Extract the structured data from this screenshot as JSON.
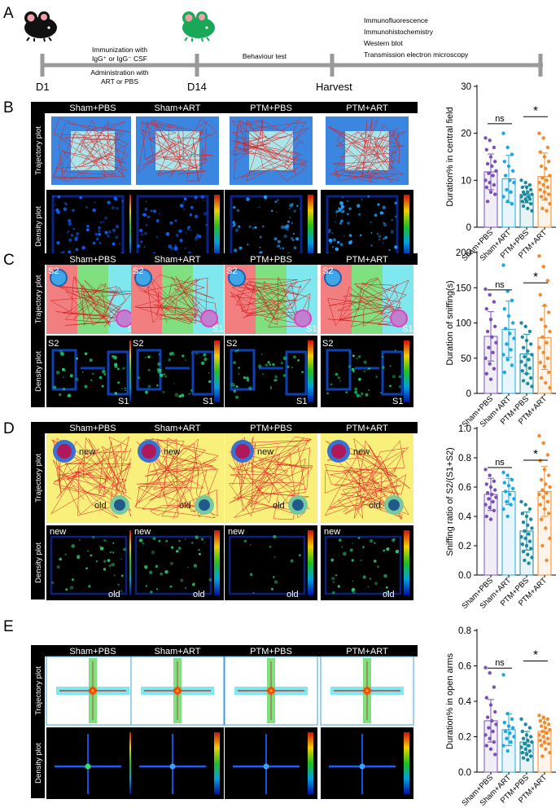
{
  "panel_a": {
    "letter": "A",
    "day_start": "D1",
    "day_mid": "D14",
    "harvest": "Harvest",
    "immunization": "Immunization with",
    "immunization_agent": "IgG⁺ or IgG⁻ CSF",
    "administration": "Administration with",
    "administration_agent": "ART or PBS",
    "behaviour": "Behaviour test",
    "assays": [
      "Immunofluorescence",
      "Immunohistochemistry",
      "Western blot",
      "Transmission electron microscopy"
    ]
  },
  "groups": [
    "Sham+PBS",
    "Sham+ART",
    "PTM+PBS",
    "PTM+ART"
  ],
  "row_labels": {
    "trajectory": "Trajectory plot",
    "density": "Density plot"
  },
  "panel_c_labels": {
    "s1": "S1",
    "s2": "S2"
  },
  "panel_d_labels": {
    "new": "new",
    "old": "old"
  },
  "colors": {
    "sham_pbs": "#7a52b3",
    "sham_art": "#1ca7e0",
    "ptm_pbs": "#1b8a9e",
    "ptm_art": "#f08a2a"
  },
  "chart_data": [
    {
      "type": "bar",
      "panel": "B",
      "categories": [
        "Sham+PBS",
        "Sham+ART",
        "PTM+PBS",
        "PTM+ART"
      ],
      "values": [
        11.8,
        10.3,
        7.0,
        10.8
      ],
      "errors": [
        3.8,
        5.0,
        1.8,
        5.0
      ],
      "ylabel": "Duration% in central field",
      "ylim": [
        0,
        30
      ],
      "yticks": [
        0,
        10,
        20,
        30
      ],
      "annotations": [
        {
          "between": [
            0,
            1
          ],
          "text": "ns"
        },
        {
          "between": [
            2,
            3
          ],
          "text": "*"
        }
      ],
      "points": [
        [
          19,
          18.5,
          17,
          16.5,
          15,
          14,
          13.5,
          13,
          12,
          11.5,
          11,
          10,
          9.5,
          9,
          8.5,
          7.5,
          7,
          5.5
        ],
        [
          20,
          17,
          15.5,
          14,
          13,
          12,
          11,
          10,
          9.5,
          8,
          7.5,
          6.5,
          5.5,
          5
        ],
        [
          10,
          9.5,
          9,
          8.5,
          8.5,
          8,
          7.5,
          7.5,
          7,
          7,
          6.5,
          6.5,
          6,
          6,
          5.5,
          5.5,
          5,
          4.5,
          4,
          3.5
        ],
        [
          20,
          19,
          17,
          16,
          15,
          14,
          13,
          12.5,
          11,
          10.5,
          10,
          9.5,
          9,
          8.5,
          8,
          7.5,
          7,
          6.5,
          6,
          5,
          4,
          3.5
        ]
      ]
    },
    {
      "type": "bar",
      "panel": "C",
      "categories": [
        "Sham+PBS",
        "Sham+ART",
        "PTM+PBS",
        "PTM+ART"
      ],
      "values": [
        81,
        91,
        56,
        79
      ],
      "errors": [
        35,
        40,
        28,
        45
      ],
      "ylabel": "Duration of sniffing(s)",
      "ylim": [
        0,
        200
      ],
      "yticks": [
        0,
        50,
        100,
        150,
        200
      ],
      "annotations": [
        {
          "between": [
            0,
            1
          ],
          "text": "ns"
        },
        {
          "between": [
            2,
            3
          ],
          "text": "*"
        }
      ],
      "points": [
        [
          148,
          140,
          130,
          120,
          105,
          95,
          88,
          80,
          72,
          65,
          58,
          50,
          42,
          35,
          28,
          20
        ],
        [
          182,
          145,
          132,
          120,
          110,
          100,
          92,
          85,
          78,
          70,
          62,
          55,
          48,
          40,
          30
        ],
        [
          100,
          95,
          88,
          80,
          75,
          70,
          65,
          60,
          55,
          52,
          48,
          45,
          40,
          36,
          32,
          28,
          22,
          18,
          14,
          10
        ],
        [
          195,
          180,
          160,
          140,
          125,
          115,
          105,
          95,
          88,
          80,
          72,
          65,
          58,
          50,
          44,
          38,
          30,
          22,
          15,
          8
        ]
      ]
    },
    {
      "type": "bar",
      "panel": "D",
      "categories": [
        "Sham+PBS",
        "Sham+ART",
        "PTM+PBS",
        "PTM+ART"
      ],
      "values": [
        0.55,
        0.57,
        0.3,
        0.57
      ],
      "errors": [
        0.11,
        0.09,
        0.13,
        0.17
      ],
      "ylabel": "Sniffing ratio of S2/(S1+S2)",
      "ylim": [
        0,
        1.0
      ],
      "yticks": [
        0,
        0.2,
        0.4,
        0.6,
        0.8,
        1.0
      ],
      "annotations": [
        {
          "between": [
            0,
            1
          ],
          "text": "ns"
        },
        {
          "between": [
            2,
            3
          ],
          "text": "*"
        }
      ],
      "points": [
        [
          0.72,
          0.68,
          0.64,
          0.62,
          0.6,
          0.58,
          0.56,
          0.55,
          0.53,
          0.52,
          0.5,
          0.48,
          0.46,
          0.44,
          0.4,
          0.38
        ],
        [
          0.7,
          0.68,
          0.65,
          0.63,
          0.61,
          0.59,
          0.57,
          0.55,
          0.52,
          0.5,
          0.48,
          0.45,
          0.4
        ],
        [
          0.5,
          0.48,
          0.45,
          0.42,
          0.4,
          0.38,
          0.36,
          0.34,
          0.32,
          0.3,
          0.28,
          0.26,
          0.25,
          0.23,
          0.21,
          0.2,
          0.18,
          0.16,
          0.14,
          0.12,
          0.1,
          0.08
        ],
        [
          0.95,
          0.9,
          0.82,
          0.78,
          0.72,
          0.68,
          0.65,
          0.62,
          0.6,
          0.58,
          0.56,
          0.55,
          0.53,
          0.5,
          0.48,
          0.45,
          0.42,
          0.38,
          0.32,
          0.25,
          0.2,
          0.1
        ]
      ]
    },
    {
      "type": "bar",
      "panel": "E",
      "categories": [
        "Sham+PBS",
        "Sham+ART",
        "PTM+PBS",
        "PTM+ART"
      ],
      "values": [
        0.29,
        0.24,
        0.17,
        0.23
      ],
      "errors": [
        0.12,
        0.09,
        0.06,
        0.07
      ],
      "ylabel": "Duration% in open arms",
      "ylim": [
        0,
        0.8
      ],
      "yticks": [
        0,
        0.2,
        0.4,
        0.6,
        0.8
      ],
      "annotations": [
        {
          "between": [
            0,
            1
          ],
          "text": "ns"
        },
        {
          "between": [
            2,
            3
          ],
          "text": "*"
        }
      ],
      "points": [
        [
          0.59,
          0.56,
          0.48,
          0.42,
          0.38,
          0.34,
          0.31,
          0.29,
          0.27,
          0.25,
          0.23,
          0.21,
          0.19,
          0.17,
          0.15,
          0.13,
          0.1
        ],
        [
          0.55,
          0.33,
          0.3,
          0.28,
          0.26,
          0.25,
          0.23,
          0.22,
          0.2,
          0.19,
          0.17,
          0.15,
          0.12
        ],
        [
          0.3,
          0.27,
          0.25,
          0.23,
          0.21,
          0.2,
          0.19,
          0.18,
          0.17,
          0.16,
          0.15,
          0.14,
          0.13,
          0.12,
          0.11,
          0.1,
          0.09,
          0.08,
          0.07
        ],
        [
          0.32,
          0.31,
          0.3,
          0.29,
          0.28,
          0.27,
          0.26,
          0.25,
          0.24,
          0.23,
          0.22,
          0.21,
          0.2,
          0.19,
          0.18,
          0.17,
          0.16,
          0.15,
          0.13,
          0.11,
          0.09
        ]
      ]
    }
  ]
}
